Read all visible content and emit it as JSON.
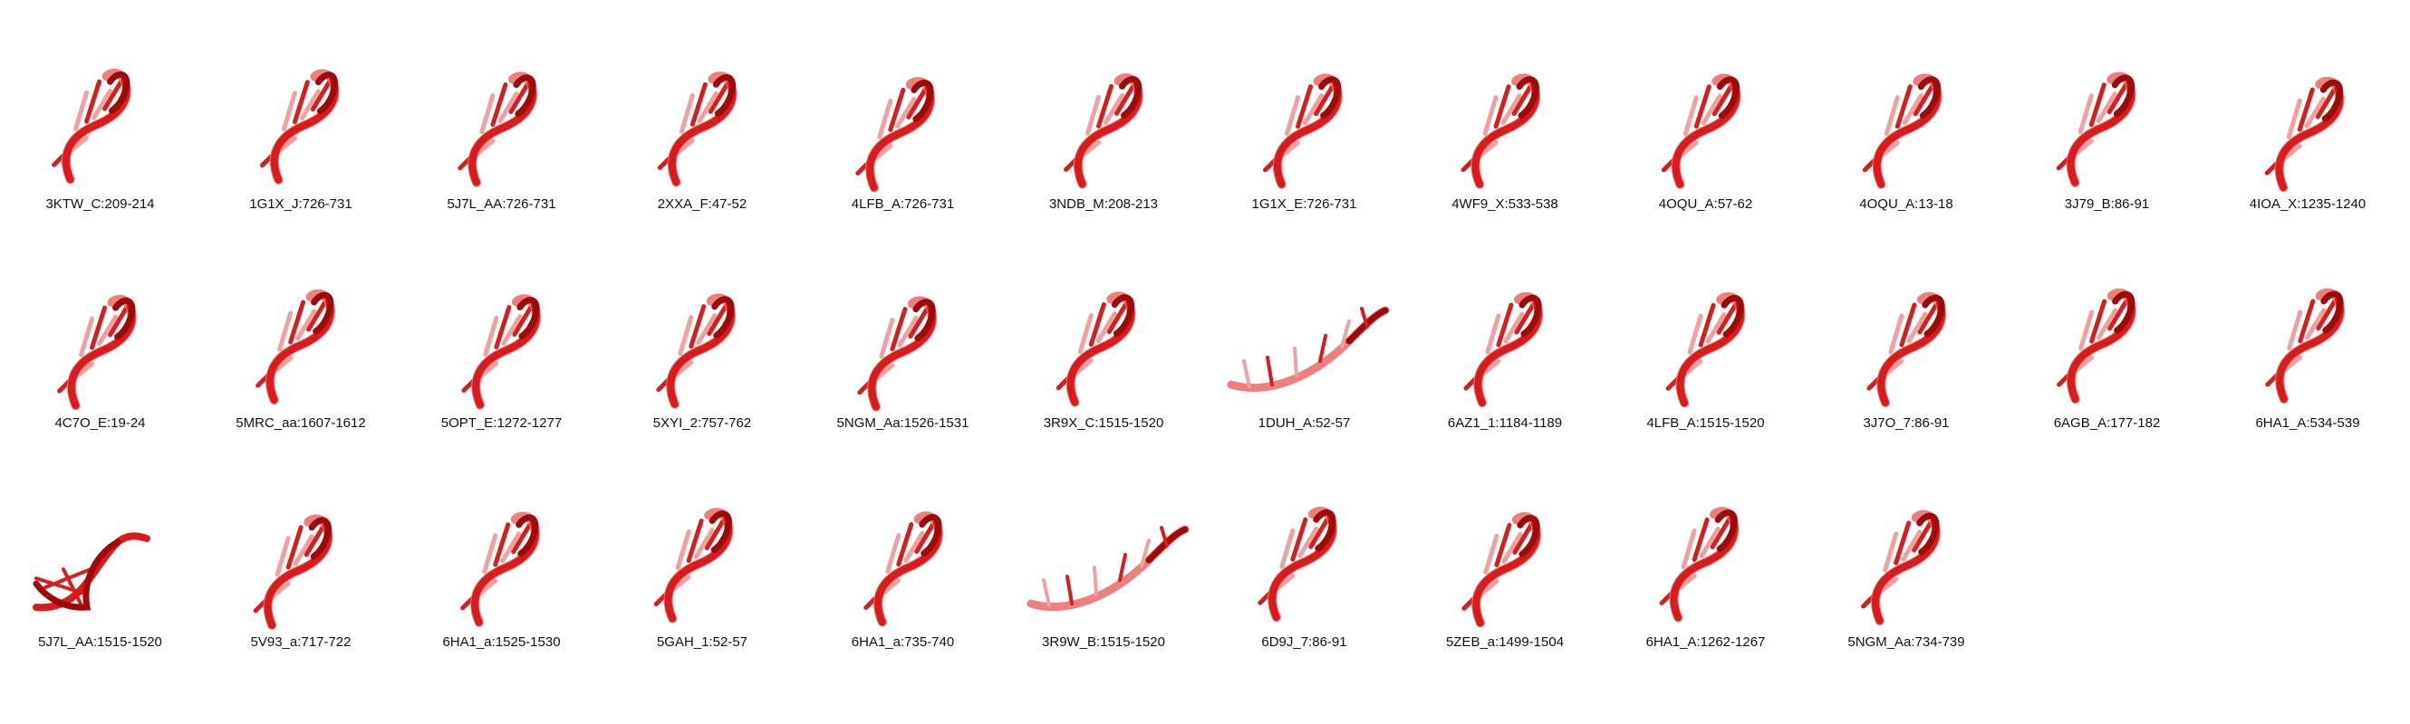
{
  "colors": {
    "backbone_dark": "#9c0a0a",
    "backbone_mid": "#d81b1b",
    "backbone_light": "#ee7f7f",
    "bases": "#d41f1f",
    "bases_light": "#f1a0a0",
    "label_text": "#111111"
  },
  "structures": [
    {
      "label": "3KTW_C:209-214",
      "shape": "hook"
    },
    {
      "label": "1G1X_J:726-731",
      "shape": "hook"
    },
    {
      "label": "5J7L_AA:726-731",
      "shape": "hook"
    },
    {
      "label": "2XXA_F:47-52",
      "shape": "hook"
    },
    {
      "label": "4LFB_A:726-731",
      "shape": "hook"
    },
    {
      "label": "3NDB_M:208-213",
      "shape": "hook"
    },
    {
      "label": "1G1X_E:726-731",
      "shape": "hook"
    },
    {
      "label": "4WF9_X:533-538",
      "shape": "hook"
    },
    {
      "label": "4OQU_A:57-62",
      "shape": "hook"
    },
    {
      "label": "4OQU_A:13-18",
      "shape": "hook"
    },
    {
      "label": "3J79_B:86-91",
      "shape": "hook"
    },
    {
      "label": "4IOA_X:1235-1240",
      "shape": "hook"
    },
    {
      "label": "4C7O_E:19-24",
      "shape": "hook"
    },
    {
      "label": "5MRC_aa:1607-1612",
      "shape": "hook"
    },
    {
      "label": "5OPT_E:1272-1277",
      "shape": "hook"
    },
    {
      "label": "5XYI_2:757-762",
      "shape": "hook"
    },
    {
      "label": "5NGM_Aa:1526-1531",
      "shape": "hook"
    },
    {
      "label": "3R9X_C:1515-1520",
      "shape": "hook"
    },
    {
      "label": "1DUH_A:52-57",
      "shape": "arc"
    },
    {
      "label": "6AZ1_1:1184-1189",
      "shape": "hook"
    },
    {
      "label": "4LFB_A:1515-1520",
      "shape": "hook"
    },
    {
      "label": "3J7O_7:86-91",
      "shape": "hook"
    },
    {
      "label": "6AGB_A:177-182",
      "shape": "hook"
    },
    {
      "label": "6HA1_A:534-539",
      "shape": "hook"
    },
    {
      "label": "5J7L_AA:1515-1520",
      "shape": "twist"
    },
    {
      "label": "5V93_a:717-722",
      "shape": "hook"
    },
    {
      "label": "6HA1_a:1525-1530",
      "shape": "hook"
    },
    {
      "label": "5GAH_1:52-57",
      "shape": "hook"
    },
    {
      "label": "6HA1_a:735-740",
      "shape": "hook"
    },
    {
      "label": "3R9W_B:1515-1520",
      "shape": "arc"
    },
    {
      "label": "6D9J_7:86-91",
      "shape": "hook"
    },
    {
      "label": "5ZEB_a:1499-1504",
      "shape": "hook"
    },
    {
      "label": "6HA1_A:1262-1267",
      "shape": "hook"
    },
    {
      "label": "5NGM_Aa:734-739",
      "shape": "hook"
    }
  ]
}
